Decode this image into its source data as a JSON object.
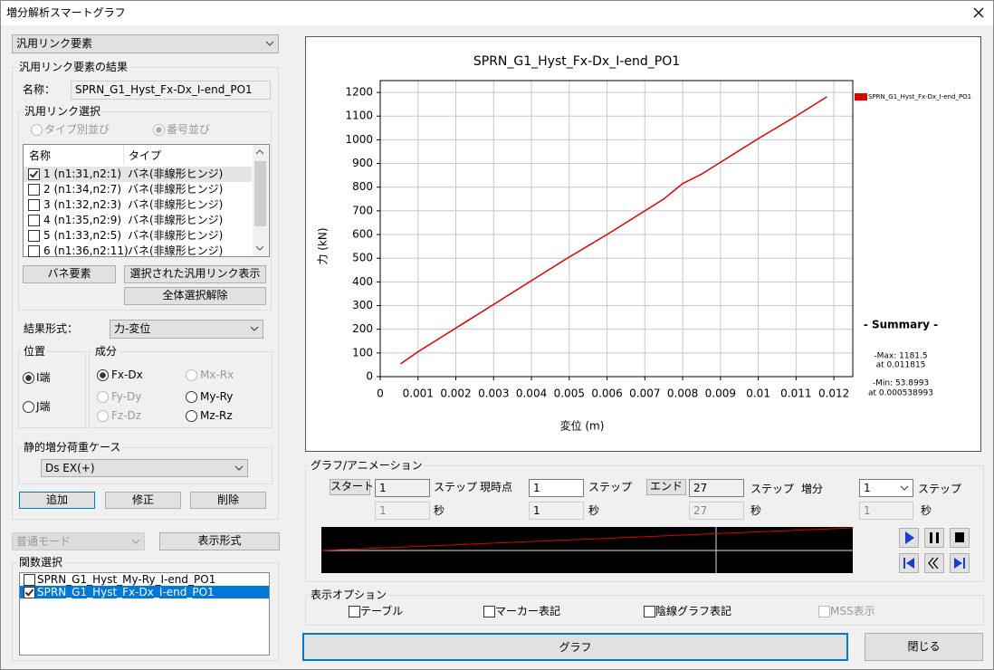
{
  "window": {
    "title": "増分解析スマートグラフ"
  },
  "left": {
    "element_type": "汎用リンク要素",
    "result_group": "汎用リンク要素の結果",
    "name_label": "名称：",
    "name_value": "SPRN_G1_Hyst_Fx-Dx_I-end_PO1",
    "link_select": {
      "title": "汎用リンク選択",
      "radio_type": "タイプ別並び",
      "radio_number": "番号並び",
      "headers": [
        "名称",
        "タイプ"
      ],
      "rows": [
        [
          "1 (n1:31,n2:1)",
          "バネ(非線形ヒンジ)"
        ],
        [
          "2 (n1:34,n2:7)",
          "バネ(非線形ヒンジ)"
        ],
        [
          "3 (n1:32,n2:3)",
          "バネ(非線形ヒンジ)"
        ],
        [
          "4 (n1:35,n2:9)",
          "バネ(非線形ヒンジ)"
        ],
        [
          "5 (n1:33,n2:5)",
          "バネ(非線形ヒンジ)"
        ],
        [
          "6 (n1:36,n2:11)",
          "バネ(非線形ヒンジ)"
        ]
      ],
      "buttons": [
        "バネ要素",
        "選択された汎用リンク表示",
        "全体選択解除"
      ]
    },
    "result_format_label": "結果形式：",
    "result_format": "力-変位",
    "position": {
      "title": "位置",
      "options": [
        "I端",
        "J端"
      ]
    },
    "component": {
      "title": "成分",
      "options": [
        "Fx-Dx",
        "Mx-Rx",
        "Fy-Dy",
        "My-Ry",
        "Fz-Dz",
        "Mz-Rz"
      ]
    },
    "load_case": {
      "title": "静的増分荷重ケース",
      "value": "Ds EX(+)"
    },
    "case_buttons": [
      "追加",
      "修正",
      "削除"
    ],
    "mode": "普通モード",
    "format_button": "表示形式",
    "functions": {
      "title": "関数選択",
      "items": [
        "SPRN_G1_Hyst_My-Ry_I-end_PO1",
        "SPRN_G1_Hyst_Fx-Dx_I-end_PO1"
      ]
    }
  },
  "chart_data": {
    "type": "line",
    "title": "SPRN_G1_Hyst_Fx-Dx_I-end_PO1",
    "x_label": "変位 (m)",
    "y_label": "力 (kN)",
    "x": [
      0.000538993,
      0.001,
      0.002,
      0.003,
      0.004,
      0.005,
      0.006,
      0.007,
      0.0075,
      0.008,
      0.0085,
      0.009,
      0.01,
      0.011,
      0.011815
    ],
    "series": [
      {
        "name": "SPRN_G1_Hyst_Fx-Dx_I-end_PO1",
        "color": "#e00000",
        "values": [
          53.8993,
          105,
          205,
          305,
          405,
          505,
          600,
          700,
          750,
          815,
          855,
          905,
          1005,
          1100,
          1181.5
        ]
      }
    ],
    "xlim": [
      0,
      0.0125
    ],
    "ylim": [
      0,
      1250
    ],
    "xticks": [
      0,
      0.001,
      0.002,
      0.003,
      0.004,
      0.005,
      0.006,
      0.007,
      0.008,
      0.009,
      0.01,
      0.011,
      0.012
    ],
    "yticks": [
      0,
      100,
      200,
      300,
      400,
      500,
      600,
      700,
      800,
      900,
      1000,
      1100,
      1200
    ],
    "grid": true,
    "summary": {
      "title": "- Summary -",
      "max": "-Max: 1181.5",
      "max_at": "at 0.011815",
      "min": "-Min: 53.8993",
      "min_at": "at 0.000538993"
    }
  },
  "animation": {
    "title": "グラフ/アニメーション",
    "start": {
      "button": "スタート",
      "step": "1",
      "step_unit": "ステップ",
      "sec": "1",
      "sec_unit": "秒"
    },
    "current": {
      "label": "現時点",
      "step": "1",
      "step_unit": "ステップ",
      "sec": "1",
      "sec_unit": "秒"
    },
    "end": {
      "button": "エンド",
      "step": "27",
      "step_unit": "ステップ",
      "sec": "27",
      "sec_unit": "秒"
    },
    "increment": {
      "label": "増分",
      "step": "1",
      "step_unit": "ステップ",
      "sec": "1",
      "sec_unit": "秒"
    }
  },
  "display_options": {
    "title": "表示オプション",
    "options": [
      "テーブル",
      "マーカー表記",
      "陰線グラフ表記",
      "MSS表示"
    ]
  },
  "footer": {
    "graph": "グラフ",
    "close": "閉じる"
  }
}
